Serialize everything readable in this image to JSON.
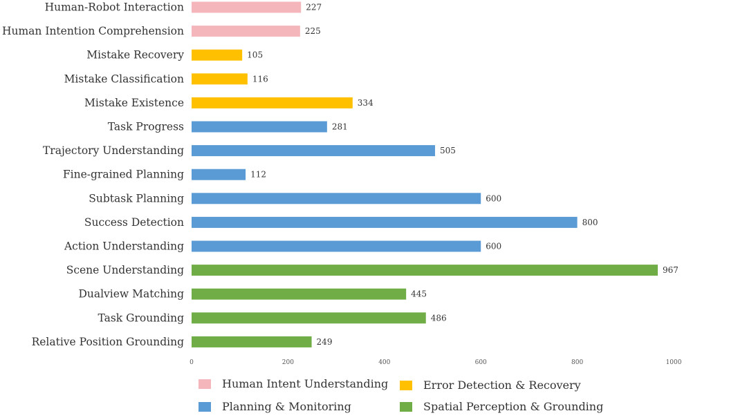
{
  "chart_data": {
    "type": "bar",
    "orientation": "horizontal",
    "title": "",
    "xlabel": "",
    "ylabel": "",
    "xlim": [
      0,
      1000
    ],
    "x_ticks": [
      0,
      200,
      400,
      600,
      800,
      1000
    ],
    "grid": false,
    "legend_position": "bottom",
    "categories": [
      "Human-Robot Interaction",
      "Human Intention Comprehension",
      "Mistake Recovery",
      "Mistake Classification",
      "Mistake Existence",
      "Task Progress",
      "Trajectory Understanding",
      "Fine-grained Planning",
      "Subtask Planning",
      "Success Detection",
      "Action Understanding",
      "Scene Understanding",
      "Dualview Matching",
      "Task Grounding",
      "Relative Position Grounding"
    ],
    "values": [
      227,
      225,
      105,
      116,
      334,
      281,
      505,
      112,
      600,
      800,
      600,
      967,
      445,
      486,
      249
    ],
    "groups": [
      "Human Intent Understanding",
      "Human Intent Understanding",
      "Error Detection & Recovery",
      "Error Detection & Recovery",
      "Error Detection & Recovery",
      "Planning & Monitoring",
      "Planning & Monitoring",
      "Planning & Monitoring",
      "Planning & Monitoring",
      "Planning & Monitoring",
      "Planning & Monitoring",
      "Spatial Perception & Grounding",
      "Spatial Perception & Grounding",
      "Spatial Perception & Grounding",
      "Spatial Perception & Grounding"
    ],
    "legend": [
      {
        "name": "Human Intent Understanding",
        "color": "#f4b6bb"
      },
      {
        "name": "Error Detection & Recovery",
        "color": "#ffc000"
      },
      {
        "name": "Planning & Monitoring",
        "color": "#5b9bd5"
      },
      {
        "name": "Spatial Perception & Grounding",
        "color": "#70ad47"
      }
    ]
  }
}
